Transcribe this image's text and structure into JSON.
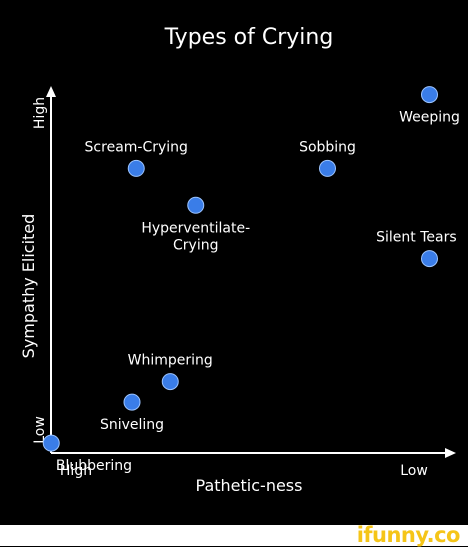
{
  "chart_data": {
    "type": "scatter",
    "title": "Types of Crying",
    "xlabel": "Pathetic-ness",
    "ylabel": "Sympathy Elicited",
    "x_ticks": {
      "min_label": "High",
      "max_label": "Low"
    },
    "y_ticks": {
      "min_label": "Low",
      "max_label": "High"
    },
    "xlim": [
      0,
      10
    ],
    "ylim": [
      0,
      10
    ],
    "grid": false,
    "point_color": "#3a7de8",
    "axis_color": "#ffffff",
    "text_color": "#ffffff",
    "background": "#000000",
    "points": [
      {
        "label": "Weeping",
        "x": 9.4,
        "y": 9.4,
        "label_pos": "below"
      },
      {
        "label": "Sobbing",
        "x": 7.0,
        "y": 7.6,
        "label_pos": "above"
      },
      {
        "label": "Scream-Crying",
        "x": 2.5,
        "y": 7.6,
        "label_pos": "above"
      },
      {
        "label": "Hyperventilate-\nCrying",
        "x": 3.9,
        "y": 6.7,
        "label_pos": "below"
      },
      {
        "label": "Silent Tears",
        "x": 9.4,
        "y": 5.4,
        "label_pos": "above"
      },
      {
        "label": "Whimpering",
        "x": 3.3,
        "y": 2.4,
        "label_pos": "above"
      },
      {
        "label": "Sniveling",
        "x": 2.4,
        "y": 1.9,
        "label_pos": "below"
      },
      {
        "label": "Blubbering",
        "x": 0.5,
        "y": 0.9,
        "label_pos": "below"
      }
    ]
  },
  "watermark": "ifunny.co"
}
